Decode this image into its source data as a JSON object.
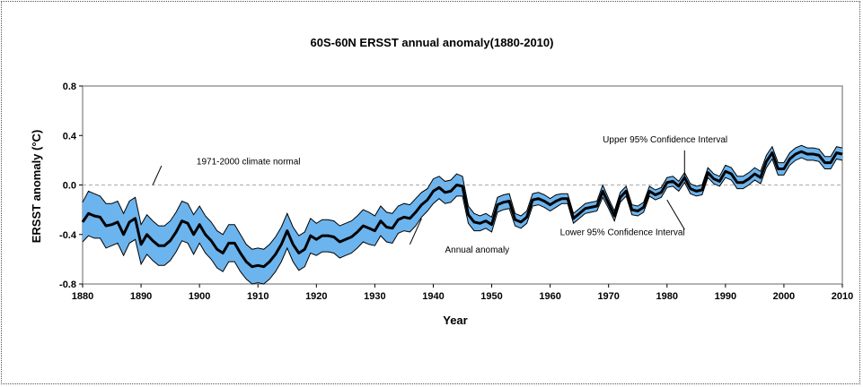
{
  "chart_data": {
    "type": "line",
    "title": "60S-60N ERSST annual anomaly(1880-2010)",
    "xlabel": "Year",
    "ylabel": "ERSST anomaly (°C)",
    "xlim": [
      1880,
      2010
    ],
    "ylim": [
      -0.8,
      0.8
    ],
    "xticks": [
      "1880",
      "1890",
      "1900",
      "1910",
      "1920",
      "1930",
      "1940",
      "1950",
      "1960",
      "1970",
      "1980",
      "1990",
      "2000",
      "2010"
    ],
    "yticks": [
      "0.8",
      "0.4",
      "0.0",
      "-0.4",
      "-0.8"
    ],
    "reference_line": {
      "label": "1971-2000 climate normal",
      "value": 0.0
    },
    "annotations": [
      {
        "text": "1971-2000 climate normal",
        "x": 1956,
        "y": 0.17
      },
      {
        "text": "Annual anomaly",
        "x": 1950,
        "y": -0.53
      },
      {
        "text": "Upper 95% Confidence Interval",
        "x": 1964,
        "y": 0.35
      },
      {
        "text": "Lower 95% Confidence Interval",
        "x": 1954,
        "y": -0.39
      }
    ],
    "colors": {
      "band": "#6cb4ee",
      "line": "#000000",
      "normal": "#aaaaaa",
      "plot_border": "#999999"
    },
    "years": [
      1880,
      1881,
      1882,
      1883,
      1884,
      1885,
      1886,
      1887,
      1888,
      1889,
      1890,
      1891,
      1892,
      1893,
      1894,
      1895,
      1896,
      1897,
      1898,
      1899,
      1900,
      1901,
      1902,
      1903,
      1904,
      1905,
      1906,
      1907,
      1908,
      1909,
      1910,
      1911,
      1912,
      1913,
      1914,
      1915,
      1916,
      1917,
      1918,
      1919,
      1920,
      1921,
      1922,
      1923,
      1924,
      1925,
      1926,
      1927,
      1928,
      1929,
      1930,
      1931,
      1932,
      1933,
      1934,
      1935,
      1936,
      1937,
      1938,
      1939,
      1940,
      1941,
      1942,
      1943,
      1944,
      1945,
      1946,
      1947,
      1948,
      1949,
      1950,
      1951,
      1952,
      1953,
      1954,
      1955,
      1956,
      1957,
      1958,
      1959,
      1960,
      1961,
      1962,
      1963,
      1964,
      1965,
      1966,
      1967,
      1968,
      1969,
      1970,
      1971,
      1972,
      1973,
      1974,
      1975,
      1976,
      1977,
      1978,
      1979,
      1980,
      1981,
      1982,
      1983,
      1984,
      1985,
      1986,
      1987,
      1988,
      1989,
      1990,
      1991,
      1992,
      1993,
      1994,
      1995,
      1996,
      1997,
      1998,
      1999,
      2000,
      2001,
      2002,
      2003,
      2004,
      2005,
      2006,
      2007,
      2008,
      2009,
      2010
    ],
    "series": [
      {
        "name": "Annual anomaly",
        "values": [
          -0.3,
          -0.23,
          -0.25,
          -0.26,
          -0.33,
          -0.32,
          -0.3,
          -0.4,
          -0.3,
          -0.27,
          -0.48,
          -0.4,
          -0.45,
          -0.49,
          -0.49,
          -0.45,
          -0.38,
          -0.29,
          -0.31,
          -0.4,
          -0.32,
          -0.4,
          -0.45,
          -0.52,
          -0.55,
          -0.47,
          -0.47,
          -0.55,
          -0.62,
          -0.66,
          -0.65,
          -0.66,
          -0.62,
          -0.56,
          -0.48,
          -0.37,
          -0.48,
          -0.55,
          -0.52,
          -0.41,
          -0.44,
          -0.41,
          -0.41,
          -0.42,
          -0.46,
          -0.44,
          -0.42,
          -0.38,
          -0.33,
          -0.35,
          -0.37,
          -0.29,
          -0.34,
          -0.35,
          -0.28,
          -0.26,
          -0.27,
          -0.22,
          -0.16,
          -0.12,
          -0.05,
          -0.02,
          -0.06,
          -0.05,
          0.0,
          -0.01,
          -0.24,
          -0.3,
          -0.31,
          -0.29,
          -0.32,
          -0.16,
          -0.14,
          -0.13,
          -0.28,
          -0.3,
          -0.26,
          -0.12,
          -0.11,
          -0.13,
          -0.16,
          -0.13,
          -0.11,
          -0.11,
          -0.27,
          -0.23,
          -0.19,
          -0.18,
          -0.17,
          -0.05,
          -0.15,
          -0.25,
          -0.1,
          -0.05,
          -0.2,
          -0.21,
          -0.18,
          -0.05,
          -0.08,
          -0.06,
          0.02,
          0.03,
          -0.01,
          0.06,
          -0.03,
          -0.05,
          -0.04,
          0.1,
          0.05,
          0.03,
          0.11,
          0.09,
          0.02,
          0.02,
          0.05,
          0.09,
          0.06,
          0.19,
          0.26,
          0.13,
          0.13,
          0.21,
          0.25,
          0.27,
          0.25,
          0.25,
          0.24,
          0.18,
          0.18,
          0.26,
          0.25
        ]
      },
      {
        "name": "Upper 95% Confidence Interval",
        "values": [
          -0.14,
          -0.05,
          -0.07,
          -0.09,
          -0.15,
          -0.15,
          -0.13,
          -0.23,
          -0.13,
          -0.1,
          -0.32,
          -0.24,
          -0.29,
          -0.33,
          -0.33,
          -0.29,
          -0.22,
          -0.13,
          -0.15,
          -0.24,
          -0.17,
          -0.25,
          -0.3,
          -0.37,
          -0.4,
          -0.32,
          -0.32,
          -0.4,
          -0.48,
          -0.52,
          -0.51,
          -0.52,
          -0.48,
          -0.42,
          -0.34,
          -0.23,
          -0.34,
          -0.41,
          -0.38,
          -0.27,
          -0.31,
          -0.28,
          -0.28,
          -0.29,
          -0.33,
          -0.31,
          -0.29,
          -0.25,
          -0.2,
          -0.22,
          -0.25,
          -0.17,
          -0.22,
          -0.23,
          -0.17,
          -0.15,
          -0.16,
          -0.11,
          -0.06,
          -0.03,
          0.05,
          0.07,
          0.03,
          0.04,
          0.09,
          0.07,
          -0.17,
          -0.23,
          -0.25,
          -0.23,
          -0.26,
          -0.1,
          -0.08,
          -0.07,
          -0.23,
          -0.25,
          -0.21,
          -0.07,
          -0.06,
          -0.08,
          -0.11,
          -0.08,
          -0.07,
          -0.07,
          -0.23,
          -0.19,
          -0.15,
          -0.14,
          -0.13,
          0.0,
          -0.11,
          -0.21,
          -0.06,
          -0.01,
          -0.16,
          -0.17,
          -0.14,
          -0.01,
          -0.04,
          -0.02,
          0.06,
          0.07,
          0.03,
          0.1,
          0.01,
          -0.01,
          0.0,
          0.14,
          0.09,
          0.07,
          0.16,
          0.14,
          0.07,
          0.07,
          0.1,
          0.14,
          0.11,
          0.24,
          0.31,
          0.18,
          0.18,
          0.26,
          0.3,
          0.32,
          0.3,
          0.3,
          0.29,
          0.23,
          0.23,
          0.31,
          0.3
        ]
      },
      {
        "name": "Lower 95% Confidence Interval",
        "values": [
          -0.46,
          -0.41,
          -0.43,
          -0.43,
          -0.51,
          -0.49,
          -0.47,
          -0.57,
          -0.47,
          -0.44,
          -0.64,
          -0.56,
          -0.61,
          -0.65,
          -0.65,
          -0.61,
          -0.54,
          -0.45,
          -0.47,
          -0.56,
          -0.47,
          -0.55,
          -0.6,
          -0.67,
          -0.7,
          -0.62,
          -0.62,
          -0.7,
          -0.76,
          -0.8,
          -0.79,
          -0.8,
          -0.76,
          -0.7,
          -0.62,
          -0.51,
          -0.62,
          -0.69,
          -0.66,
          -0.55,
          -0.57,
          -0.54,
          -0.54,
          -0.55,
          -0.59,
          -0.57,
          -0.55,
          -0.51,
          -0.46,
          -0.48,
          -0.49,
          -0.41,
          -0.46,
          -0.47,
          -0.39,
          -0.37,
          -0.38,
          -0.33,
          -0.26,
          -0.21,
          -0.15,
          -0.11,
          -0.15,
          -0.14,
          -0.09,
          -0.09,
          -0.31,
          -0.37,
          -0.37,
          -0.35,
          -0.38,
          -0.22,
          -0.2,
          -0.19,
          -0.33,
          -0.35,
          -0.31,
          -0.17,
          -0.16,
          -0.18,
          -0.21,
          -0.18,
          -0.15,
          -0.15,
          -0.31,
          -0.27,
          -0.23,
          -0.22,
          -0.21,
          -0.1,
          -0.19,
          -0.29,
          -0.14,
          -0.09,
          -0.24,
          -0.25,
          -0.22,
          -0.09,
          -0.12,
          -0.1,
          -0.02,
          -0.01,
          -0.05,
          0.02,
          -0.07,
          -0.09,
          -0.08,
          0.06,
          0.01,
          -0.01,
          0.06,
          0.04,
          -0.03,
          -0.03,
          0.0,
          0.04,
          0.01,
          0.14,
          0.21,
          0.08,
          0.08,
          0.16,
          0.2,
          0.22,
          0.2,
          0.2,
          0.19,
          0.13,
          0.13,
          0.21,
          0.2
        ]
      }
    ]
  }
}
